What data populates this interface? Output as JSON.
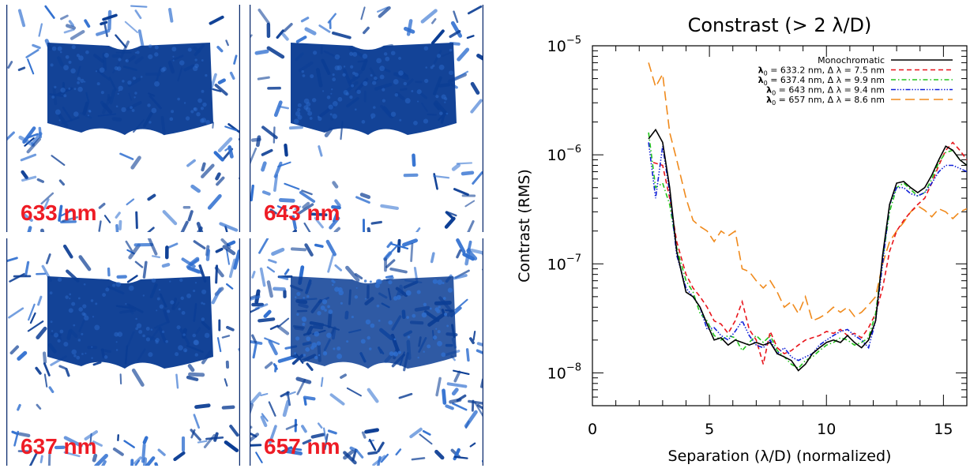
{
  "panels": [
    {
      "label": "633 nm"
    },
    {
      "label": "643 nm"
    },
    {
      "label": "637 nm"
    },
    {
      "label": "657 nm"
    }
  ],
  "colors": {
    "panel_dark": "#0b3d94",
    "panel_mid": "#2f6fd0",
    "label_red": "#ee1c25"
  },
  "chart_data": {
    "type": "line",
    "title": "Constrast (> 2 λ/D)",
    "xlabel": "Separation (λ/D) (normalized)",
    "ylabel": "Contrast (RMS)",
    "xlim": [
      0,
      16
    ],
    "ylim": [
      5e-09,
      1e-05
    ],
    "yscale": "log",
    "x_ticks": [
      0,
      5,
      10,
      15
    ],
    "y_ticks": [
      {
        "value": 1e-08,
        "base": "10",
        "exp": "−8"
      },
      {
        "value": 1e-07,
        "base": "10",
        "exp": "−7"
      },
      {
        "value": 1e-06,
        "base": "10",
        "exp": "−6"
      },
      {
        "value": 1e-05,
        "base": "10",
        "exp": "−5"
      }
    ],
    "legend_position": "top-right",
    "series": [
      {
        "name": "Monochromatic",
        "legend_parts": {
          "text": "Monochromatic"
        },
        "color": "#000000",
        "dash": "",
        "x": [
          2.4,
          2.7,
          3.0,
          3.3,
          3.6,
          4.0,
          4.3,
          4.6,
          4.9,
          5.2,
          5.5,
          5.8,
          6.1,
          6.4,
          6.7,
          7.0,
          7.3,
          7.6,
          7.9,
          8.2,
          8.5,
          8.8,
          9.1,
          9.4,
          9.7,
          10.0,
          10.3,
          10.6,
          10.9,
          11.2,
          11.5,
          11.8,
          12.1,
          12.4,
          12.7,
          13.0,
          13.3,
          13.6,
          13.9,
          14.2,
          14.5,
          14.8,
          15.1,
          15.4,
          15.7,
          16.0
        ],
        "y": [
          1.4e-06,
          1.7e-06,
          1.3e-06,
          5e-07,
          1.3e-07,
          5.5e-08,
          5e-08,
          4e-08,
          2.8e-08,
          2e-08,
          2.1e-08,
          1.8e-08,
          2e-08,
          1.9e-08,
          1.8e-08,
          1.9e-08,
          1.8e-08,
          1.9e-08,
          1.5e-08,
          1.4e-08,
          1.3e-08,
          1.05e-08,
          1.2e-08,
          1.5e-08,
          1.7e-08,
          1.9e-08,
          2e-08,
          1.9e-08,
          2.2e-08,
          1.9e-08,
          1.7e-08,
          2e-08,
          3e-08,
          1.2e-07,
          3.5e-07,
          5.5e-07,
          5.7e-07,
          5e-07,
          4.5e-07,
          5e-07,
          6.5e-07,
          9e-07,
          1.2e-06,
          1.1e-06,
          9e-07,
          8e-07
        ]
      },
      {
        "name": "λ₀ = 633.2 nm, Δ λ = 7.5 nm",
        "legend_parts": {
          "lambda": "λ",
          "sub": "0",
          "text": " = 633.2 nm, Δ λ = 7.5 nm"
        },
        "color": "#e8141b",
        "dash": "6,4",
        "x": [
          2.6,
          3.0,
          3.3,
          3.6,
          4.0,
          4.3,
          4.6,
          4.9,
          5.2,
          5.5,
          5.8,
          6.1,
          6.4,
          6.7,
          7.0,
          7.3,
          7.6,
          7.9,
          8.2,
          8.5,
          8.8,
          9.1,
          9.4,
          9.7,
          10.0,
          10.3,
          10.6,
          10.9,
          11.2,
          11.5,
          11.8,
          12.1,
          12.4,
          12.7,
          13.0,
          13.3,
          13.6,
          13.9,
          14.2,
          14.5,
          14.8,
          15.1,
          15.4,
          15.7,
          16.0
        ],
        "y": [
          8.5e-07,
          8e-07,
          4e-07,
          1.6e-07,
          8e-08,
          6e-08,
          5e-08,
          4e-08,
          3e-08,
          2.8e-08,
          2.3e-08,
          3e-08,
          4.5e-08,
          2.5e-08,
          2e-08,
          1.2e-08,
          2.4e-08,
          1.7e-08,
          1.5e-08,
          1.6e-08,
          1.8e-08,
          2e-08,
          2.1e-08,
          2.2e-08,
          2.4e-08,
          2.3e-08,
          2.5e-08,
          2.2e-08,
          2.3e-08,
          2.1e-08,
          2.6e-08,
          3.5e-08,
          6e-08,
          1.3e-07,
          2e-07,
          2.5e-07,
          3e-07,
          3.5e-07,
          4e-07,
          5.5e-07,
          8e-07,
          1.1e-06,
          1.3e-06,
          1.1e-06,
          9e-07
        ]
      },
      {
        "name": "λ₀ = 637.4 nm, Δ λ = 9.9 nm",
        "legend_parts": {
          "lambda": "λ",
          "sub": "0",
          "text": " = 637.4 nm, Δ λ = 9.9 nm"
        },
        "color": "#22c41c",
        "dash": "6,3,1.5,3",
        "x": [
          2.4,
          2.7,
          3.0,
          3.3,
          3.6,
          4.0,
          4.3,
          4.6,
          4.9,
          5.2,
          5.5,
          5.8,
          6.1,
          6.4,
          6.7,
          7.0,
          7.3,
          7.6,
          7.9,
          8.2,
          8.5,
          8.8,
          9.1,
          9.4,
          9.7,
          10.0,
          10.3,
          10.6,
          10.9,
          11.2,
          11.5,
          11.8,
          12.1,
          12.4,
          12.7,
          13.0,
          13.3,
          13.6,
          13.9,
          14.2,
          14.5,
          14.8,
          15.1,
          15.4,
          15.7,
          16.0
        ],
        "y": [
          1.6e-06,
          5e-07,
          5.5e-07,
          3.5e-07,
          1.4e-07,
          7e-08,
          5.5e-08,
          3.5e-08,
          3e-08,
          2.2e-08,
          2e-08,
          2.2e-08,
          2.1e-08,
          1.6e-08,
          1.9e-08,
          2.2e-08,
          1.9e-08,
          2.2e-08,
          1.6e-08,
          1.4e-08,
          1.2e-08,
          1.1e-08,
          1.3e-08,
          1.4e-08,
          1.6e-08,
          1.8e-08,
          1.9e-08,
          2.1e-08,
          2e-08,
          1.8e-08,
          1.9e-08,
          2.1e-08,
          3.5e-08,
          1.1e-07,
          3e-07,
          5e-07,
          5.5e-07,
          4.8e-07,
          4.2e-07,
          4.5e-07,
          6e-07,
          8.5e-07,
          1.05e-06,
          1.1e-06,
          9e-07,
          8e-07
        ]
      },
      {
        "name": "λ₀ = 643 nm, Δ λ = 9.4 nm",
        "legend_parts": {
          "lambda": "λ",
          "sub": "0",
          "text": " = 643 nm, Δ λ = 9.4 nm"
        },
        "color": "#1020d8",
        "dash": "6,2,1.5,2,1.5,2,1.5,2",
        "x": [
          2.4,
          2.7,
          3.0,
          3.3,
          3.6,
          4.0,
          4.3,
          4.6,
          4.9,
          5.2,
          5.5,
          5.8,
          6.1,
          6.4,
          6.7,
          7.0,
          7.3,
          7.6,
          7.9,
          8.2,
          8.5,
          8.8,
          9.1,
          9.4,
          9.7,
          10.0,
          10.3,
          10.6,
          10.9,
          11.2,
          11.5,
          11.8,
          12.1,
          12.4,
          12.7,
          13.0,
          13.3,
          13.6,
          13.9,
          14.2,
          14.5,
          14.8,
          15.1,
          15.4,
          15.7,
          16.0
        ],
        "y": [
          1.3e-06,
          4e-07,
          1.2e-06,
          4.5e-07,
          1.2e-07,
          6e-08,
          5e-08,
          4e-08,
          2.5e-08,
          2.6e-08,
          2.2e-08,
          2e-08,
          2.4e-08,
          3e-08,
          2.2e-08,
          1.8e-08,
          1.7e-08,
          2e-08,
          1.5e-08,
          1.7e-08,
          1.4e-08,
          1.3e-08,
          1.4e-08,
          1.5e-08,
          1.8e-08,
          2e-08,
          2.2e-08,
          2.4e-08,
          2.5e-08,
          2.2e-08,
          2e-08,
          1.7e-08,
          3e-08,
          1e-07,
          3.5e-07,
          5e-07,
          5e-07,
          4.4e-07,
          4.2e-07,
          4.5e-07,
          5.5e-07,
          7e-07,
          8e-07,
          8e-07,
          7.5e-07,
          7e-07
        ]
      },
      {
        "name": "λ₀ = 657 nm, Δ λ = 8.6 nm",
        "legend_parts": {
          "lambda": "λ",
          "sub": "0",
          "text": " = 657 nm, Δ λ = 8.6 nm"
        },
        "color": "#f08a1c",
        "dash": "12,6",
        "x": [
          2.4,
          2.7,
          3.0,
          3.3,
          3.6,
          4.0,
          4.3,
          4.6,
          4.9,
          5.2,
          5.5,
          5.8,
          6.1,
          6.4,
          6.7,
          7.0,
          7.3,
          7.6,
          7.9,
          8.2,
          8.5,
          8.8,
          9.1,
          9.4,
          9.7,
          10.0,
          10.3,
          10.6,
          10.9,
          11.2,
          11.5,
          11.8,
          12.1,
          12.4,
          12.7,
          13.0,
          13.3,
          13.6,
          13.9,
          14.2,
          14.5,
          14.8,
          15.1,
          15.4,
          15.7,
          16.0
        ],
        "y": [
          7e-06,
          4.2e-06,
          5.5e-06,
          1.6e-06,
          9e-07,
          4e-07,
          2.5e-07,
          2.2e-07,
          2e-07,
          1.6e-07,
          2e-07,
          1.8e-07,
          2e-07,
          9e-08,
          8.5e-08,
          7e-08,
          6e-08,
          7e-08,
          5.5e-08,
          4e-08,
          4.5e-08,
          3.5e-08,
          5e-08,
          3e-08,
          3.2e-08,
          3.5e-08,
          4e-08,
          3.6e-08,
          4e-08,
          3.3e-08,
          3.6e-08,
          4.2e-08,
          5e-08,
          1e-07,
          1.6e-07,
          2e-07,
          2.4e-07,
          3e-07,
          3.4e-07,
          3.1e-07,
          2.7e-07,
          3.2e-07,
          3e-07,
          2.6e-07,
          3e-07,
          3.2e-07
        ]
      }
    ]
  }
}
